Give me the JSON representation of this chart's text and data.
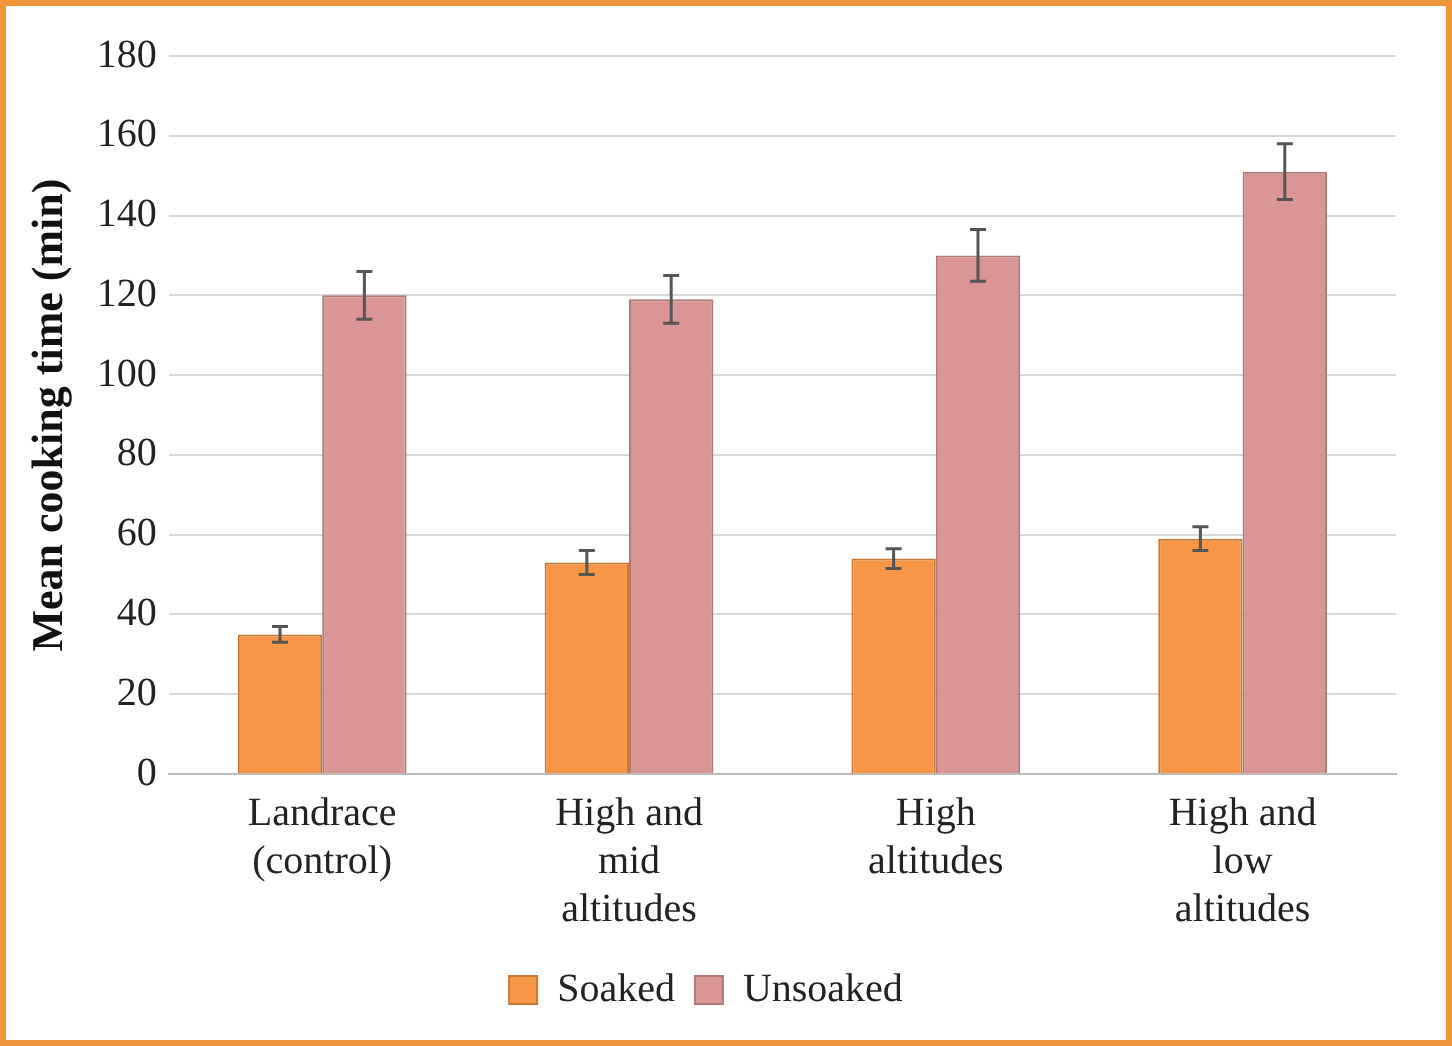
{
  "chart_data": {
    "type": "bar",
    "ylabel": "Mean cooking time (min)",
    "categories": [
      "Landrace (control)",
      "High and mid altitudes",
      "High altitudes",
      "High and low altitudes"
    ],
    "series": [
      {
        "name": "Soaked",
        "color": "#f79646",
        "values": [
          35,
          53,
          54,
          59
        ],
        "errors": [
          2,
          3,
          2.5,
          3
        ]
      },
      {
        "name": "Unsoaked",
        "color": "#d99694",
        "values": [
          120,
          119,
          130,
          151
        ],
        "errors": [
          6,
          6,
          6.5,
          7
        ]
      }
    ],
    "ylim": [
      0,
      180
    ],
    "yticks": [
      0,
      20,
      40,
      60,
      80,
      100,
      120,
      140,
      160,
      180
    ],
    "grid": "y",
    "legend": "bottom"
  }
}
